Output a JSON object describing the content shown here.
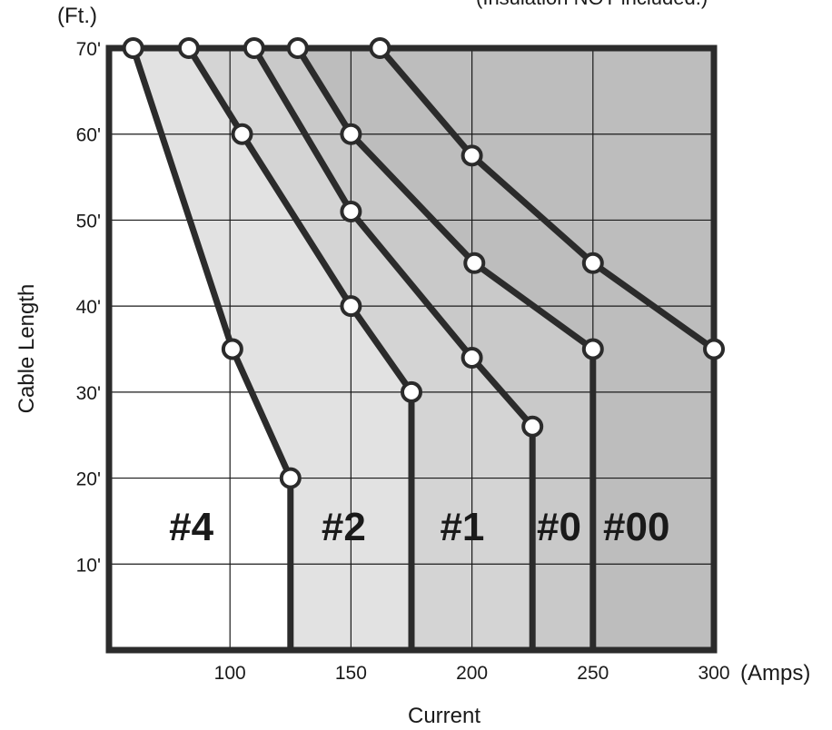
{
  "chart_data": {
    "type": "area",
    "xlabel": "Current",
    "ylabel": "Cable Length",
    "x_unit": "(Amps)",
    "y_unit": "(Ft.)",
    "note": "(Insulation NOT included.)",
    "xlim": [
      50,
      300
    ],
    "ylim": [
      0,
      70
    ],
    "x_ticks": [
      100,
      150,
      200,
      250,
      300
    ],
    "x_tick_labels": [
      "100",
      "150",
      "200",
      "250",
      "300"
    ],
    "y_ticks": [
      10,
      20,
      30,
      40,
      50,
      60,
      70
    ],
    "y_tick_labels": [
      "10'",
      "20'",
      "30'",
      "40'",
      "50'",
      "60'",
      "70'"
    ],
    "grid": true,
    "series": [
      {
        "name": "#4",
        "points": [
          [
            60,
            70
          ],
          [
            101,
            35
          ],
          [
            125,
            20
          ],
          [
            125,
            0
          ]
        ]
      },
      {
        "name": "#2",
        "points": [
          [
            83,
            70
          ],
          [
            105,
            60
          ],
          [
            150,
            40
          ],
          [
            175,
            30
          ],
          [
            175,
            0
          ]
        ]
      },
      {
        "name": "#1",
        "points": [
          [
            110,
            70
          ],
          [
            150,
            51
          ],
          [
            200,
            34
          ],
          [
            225,
            26
          ],
          [
            225,
            0
          ]
        ]
      },
      {
        "name": "#0",
        "points": [
          [
            128,
            70
          ],
          [
            150,
            60
          ],
          [
            201,
            45
          ],
          [
            250,
            35
          ],
          [
            250,
            0
          ]
        ]
      },
      {
        "name": "#00",
        "points": [
          [
            162,
            70
          ],
          [
            200,
            57.5
          ],
          [
            250,
            45
          ],
          [
            300,
            35
          ],
          [
            300,
            0
          ]
        ]
      }
    ],
    "region_labels": [
      {
        "text": "#4",
        "x": 84,
        "y": 14
      },
      {
        "text": "#2",
        "x": 147,
        "y": 14
      },
      {
        "text": "#1",
        "x": 196,
        "y": 14
      },
      {
        "text": "#0",
        "x": 236,
        "y": 14
      },
      {
        "text": "#00",
        "x": 268,
        "y": 14
      }
    ],
    "colors": {
      "#4": "#ffffff",
      "#2": "#e2e2e2",
      "#1": "#d4d4d4",
      "#0": "#c9c9c9",
      "#00": "#bdbdbd",
      "line": "#2b2b2b",
      "grid": "#1a1a1a"
    }
  }
}
